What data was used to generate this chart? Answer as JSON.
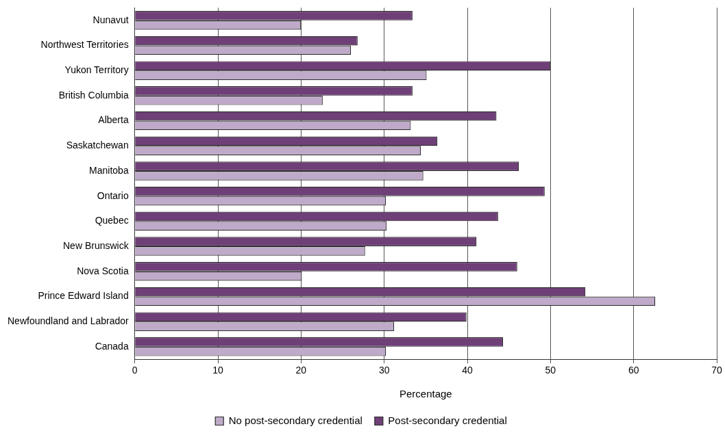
{
  "chart_data": {
    "type": "bar",
    "orientation": "horizontal",
    "xlabel": "Percentage",
    "categories": [
      "Nunavut",
      "Northwest Territories",
      "Yukon Territory",
      "British Columbia",
      "Alberta",
      "Saskatchewan",
      "Manitoba",
      "Ontario",
      "Quebec",
      "New Brunswick",
      "Nova Scotia",
      "Prince Edward Island",
      "Newfoundland and Labrador",
      "Canada"
    ],
    "series": [
      {
        "name": "No post-secondary credential",
        "color": "#bfaac9",
        "values": [
          20.0,
          26.0,
          35.1,
          22.6,
          33.2,
          34.4,
          34.7,
          30.2,
          30.3,
          27.7,
          20.1,
          62.6,
          31.2,
          30.2
        ]
      },
      {
        "name": "Post-secondary credential",
        "color": "#6f3f78",
        "values": [
          33.4,
          26.8,
          50.0,
          33.4,
          43.5,
          36.4,
          46.2,
          49.3,
          43.7,
          41.1,
          46.0,
          54.2,
          39.9,
          44.3
        ]
      }
    ],
    "xlim": [
      0,
      70
    ],
    "xticks": [
      0,
      10,
      20,
      30,
      40,
      50,
      60,
      70
    ],
    "grid": "x",
    "legend": "bottom"
  }
}
